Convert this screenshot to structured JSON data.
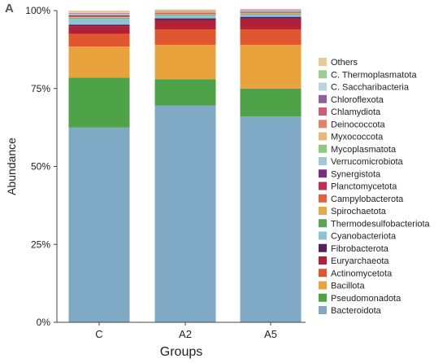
{
  "panel_label": "A",
  "chart_data": {
    "type": "bar",
    "stacked": true,
    "categories": [
      "C",
      "A2",
      "A5"
    ],
    "xlabel": "Groups",
    "ylabel": "Abundance",
    "ylim": [
      0,
      1
    ],
    "yticks": [
      "0%",
      "25%",
      "50%",
      "75%",
      "100%"
    ],
    "legend_position": "right",
    "grid": false,
    "series": [
      {
        "name": "Bacteroidota",
        "color": "#7fa9c4",
        "values": [
          0.625,
          0.695,
          0.66
        ]
      },
      {
        "name": "Pseudomonadota",
        "color": "#4ea247",
        "values": [
          0.16,
          0.085,
          0.09
        ]
      },
      {
        "name": "Bacillota",
        "color": "#e8a33c",
        "values": [
          0.1,
          0.11,
          0.14
        ]
      },
      {
        "name": "Actinomycetota",
        "color": "#e0562f",
        "values": [
          0.04,
          0.05,
          0.05
        ]
      },
      {
        "name": "Euryarchaeota",
        "color": "#b0203a",
        "values": [
          0.025,
          0.03,
          0.035
        ]
      },
      {
        "name": "Fibrobacterota",
        "color": "#5a1f5e",
        "values": [
          0.005,
          0.005,
          0.005
        ]
      },
      {
        "name": "Cyanobacteriota",
        "color": "#8cc4d6",
        "values": [
          0.02,
          0.01,
          0.008
        ]
      },
      {
        "name": "Thermodesulfobacteriota",
        "color": "#5aa55a",
        "values": [
          0.002,
          0.002,
          0.002
        ]
      },
      {
        "name": "Spirochaetota",
        "color": "#e6a84a",
        "values": [
          0.002,
          0.002,
          0.002
        ]
      },
      {
        "name": "Campylobacterota",
        "color": "#e2613f",
        "values": [
          0.002,
          0.002,
          0.002
        ]
      },
      {
        "name": "Planctomycetota",
        "color": "#c22e4e",
        "values": [
          0.002,
          0.001,
          0.001
        ]
      },
      {
        "name": "Synergistota",
        "color": "#7a2d7e",
        "values": [
          0.002,
          0.001,
          0.001
        ]
      },
      {
        "name": "Verrucomicrobiota",
        "color": "#a3c7d7",
        "values": [
          0.002,
          0.001,
          0.001
        ]
      },
      {
        "name": "Mycoplasmatota",
        "color": "#8bc97c",
        "values": [
          0.001,
          0.001,
          0.001
        ]
      },
      {
        "name": "Myxococcota",
        "color": "#eab77a",
        "values": [
          0.001,
          0.001,
          0.001
        ]
      },
      {
        "name": "Deinococcota",
        "color": "#e28267",
        "values": [
          0.001,
          0.001,
          0.001
        ]
      },
      {
        "name": "Chlamydiota",
        "color": "#cc5f78",
        "values": [
          0.001,
          0.001,
          0.001
        ]
      },
      {
        "name": "Chloroflexota",
        "color": "#8d5f9b",
        "values": [
          0.001,
          0.001,
          0.001
        ]
      },
      {
        "name": "C. Saccharibacteria",
        "color": "#b8d3e0",
        "values": [
          0.001,
          0.001,
          0.001
        ]
      },
      {
        "name": "C. Thermoplasmatota",
        "color": "#9ccf8f",
        "values": [
          0.001,
          0.001,
          0.001
        ]
      },
      {
        "name": "Others",
        "color": "#e9c899",
        "values": [
          0.006,
          0.003,
          0.002
        ]
      }
    ]
  }
}
